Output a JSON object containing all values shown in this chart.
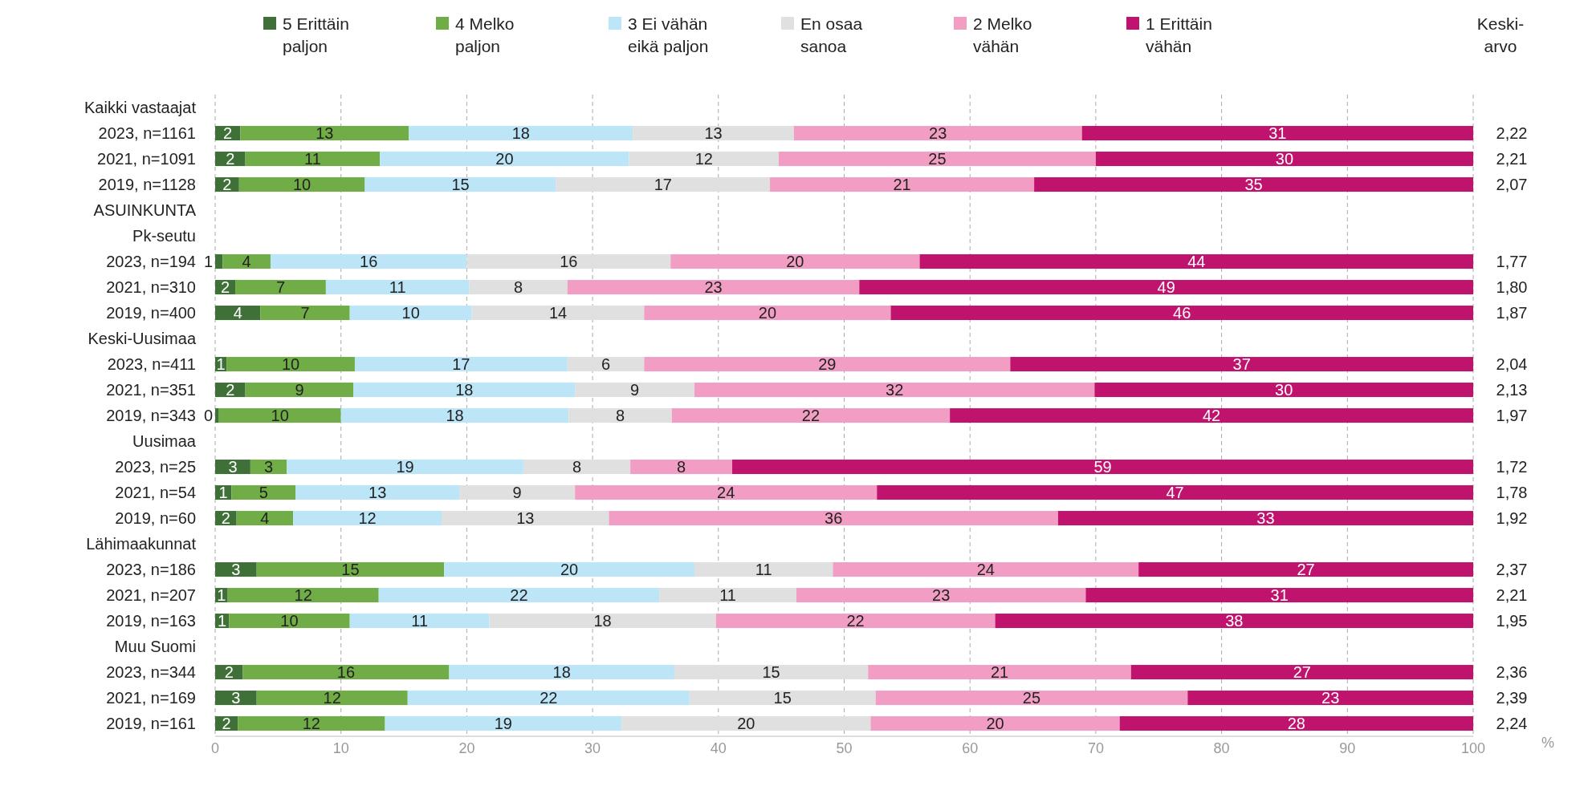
{
  "chart_data": {
    "type": "bar",
    "orientation": "horizontal",
    "stacked": true,
    "categories": [
      "Kaikki vastaajat",
      "2023, n=1161",
      "2021, n=1091",
      "2019, n=1128",
      "ASUINKUNTA",
      "Pk-seutu",
      "2023, n=194",
      "2021, n=310",
      "2019, n=400",
      "Keski-Uusimaa",
      "2023, n=411",
      "2021, n=351",
      "2019, n=343",
      "Uusimaa",
      "2023, n=25",
      "2021, n=54",
      "2019, n=60",
      "Lähimaakunnat",
      "2023, n=186",
      "2021, n=207",
      "2019, n=163",
      "Muu Suomi",
      "2023, n=344",
      "2021, n=169",
      "2019, n=161"
    ],
    "series": [
      {
        "name": "5 Erittäin paljon",
        "color": "#3f7038",
        "values": [
          null,
          2,
          2.4,
          1.9,
          null,
          null,
          0.6,
          1.6,
          3.6,
          null,
          0.9,
          2.4,
          0.3,
          null,
          2.8,
          1.3,
          1.7,
          null,
          3.3,
          1,
          1.1,
          null,
          2.2,
          3.3,
          1.8
        ],
        "value_labels": [
          null,
          "2",
          "2",
          "2",
          null,
          null,
          "1",
          "2",
          "4",
          null,
          "1",
          "2",
          "0",
          null,
          "3",
          "1",
          "2",
          null,
          "3",
          "1",
          "1",
          null,
          "2",
          "3",
          "2"
        ]
      },
      {
        "name": "4 Melko paljon",
        "color": "#70ad47",
        "values": [
          null,
          13.4,
          10.7,
          10,
          null,
          null,
          3.8,
          7.2,
          7.1,
          null,
          10.2,
          8.6,
          9.7,
          null,
          2.9,
          5.1,
          4.5,
          null,
          14.9,
          12,
          9.6,
          null,
          16.4,
          12,
          11.7
        ],
        "value_labels": [
          null,
          "13",
          "11",
          "10",
          null,
          null,
          "4",
          "7",
          "7",
          null,
          "10",
          "9",
          "10",
          null,
          "3",
          "5",
          "4",
          null,
          "15",
          "12",
          "10",
          null,
          "16",
          "12",
          "12"
        ]
      },
      {
        "name": "3 Ei vähän eikä paljon",
        "color": "#bde5f8",
        "values": [
          null,
          17.8,
          19.8,
          15.2,
          null,
          null,
          15.6,
          11.4,
          9.7,
          null,
          16.9,
          17.6,
          18.1,
          null,
          18.8,
          13,
          11.8,
          null,
          19.9,
          22.3,
          11.1,
          null,
          17.9,
          22.4,
          18.8
        ],
        "value_labels": [
          null,
          "18",
          "20",
          "15",
          null,
          null,
          "16",
          "11",
          "10",
          null,
          "17",
          "18",
          "18",
          null,
          "19",
          "13",
          "12",
          null,
          "20",
          "22",
          "11",
          null,
          "18",
          "22",
          "19"
        ]
      },
      {
        "name": "En osaa sanoa",
        "color": "#e0e0e0",
        "values": [
          null,
          12.8,
          11.9,
          17,
          null,
          null,
          16.2,
          7.8,
          13.7,
          null,
          6.1,
          9.5,
          8.2,
          null,
          8.5,
          9.2,
          13.3,
          null,
          11,
          10.9,
          18,
          null,
          15.4,
          14.8,
          19.8
        ],
        "value_labels": [
          null,
          "13",
          "12",
          "17",
          null,
          null,
          "16",
          "8",
          "14",
          null,
          "6",
          "9",
          "8",
          null,
          "8",
          "9",
          "13",
          null,
          "11",
          "11",
          "18",
          null,
          "15",
          "15",
          "20"
        ]
      },
      {
        "name": "2 Melko vähän",
        "color": "#f29ec4",
        "values": [
          null,
          22.9,
          25.2,
          21,
          null,
          null,
          19.8,
          23.2,
          19.6,
          null,
          29.1,
          31.8,
          22.1,
          null,
          8.1,
          24,
          35.7,
          null,
          24.3,
          23,
          22.2,
          null,
          20.9,
          24.8,
          19.8
        ],
        "value_labels": [
          null,
          "23",
          "25",
          "21",
          null,
          null,
          "20",
          "23",
          "20",
          null,
          "29",
          "32",
          "22",
          null,
          "8",
          "24",
          "36",
          null,
          "24",
          "23",
          "22",
          null,
          "21",
          "25",
          "20"
        ]
      },
      {
        "name": "1 Erittäin vähän",
        "color": "#c0136e",
        "values": [
          null,
          31.1,
          30,
          34.9,
          null,
          null,
          44,
          48.8,
          46.3,
          null,
          36.8,
          30.1,
          41.6,
          null,
          58.9,
          47.4,
          33,
          null,
          26.6,
          30.8,
          38,
          null,
          27.2,
          22.7,
          28.1
        ],
        "value_labels": [
          null,
          "31",
          "30",
          "35",
          null,
          null,
          "44",
          "49",
          "46",
          null,
          "37",
          "30",
          "42",
          null,
          "59",
          "47",
          "33",
          null,
          "27",
          "31",
          "38",
          null,
          "27",
          "23",
          "28"
        ]
      }
    ],
    "xlim": [
      0,
      100
    ],
    "xticks": [
      0,
      10,
      20,
      30,
      40,
      50,
      60,
      70,
      80,
      90,
      100
    ],
    "xlabel": "%",
    "grid": "x",
    "legend": "top",
    "annotations": [
      "Keski-arvo",
      "2,22",
      "2,21",
      "2,07",
      "1,77",
      "1,80",
      "1,87",
      "2,04",
      "2,13",
      "1,97",
      "1,72",
      "1,78",
      "1,92",
      "2,37",
      "2,21",
      "1,95",
      "2,36",
      "2,39",
      "2,24"
    ]
  }
}
